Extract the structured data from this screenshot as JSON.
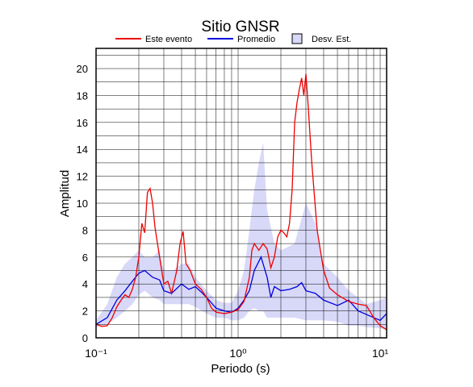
{
  "chart_data": {
    "type": "line",
    "title": "Sitio GNSR",
    "xlabel": "Periodo (s)",
    "ylabel": "Amplitud",
    "xscale": "log",
    "xlim": [
      0.1,
      11.1
    ],
    "ylim": [
      0,
      21.5
    ],
    "xticks": [
      {
        "value": 0.1,
        "label": "10⁻¹"
      },
      {
        "value": 1,
        "label": "10⁰"
      },
      {
        "value": 10,
        "label": "10¹"
      }
    ],
    "yticks": [
      0,
      2,
      4,
      6,
      8,
      10,
      12,
      14,
      16,
      18,
      20
    ],
    "xgrid_minor": [
      0.2,
      0.3,
      0.4,
      0.5,
      0.6,
      0.7,
      0.8,
      0.9,
      2,
      3,
      4,
      5,
      6,
      7,
      8,
      9
    ],
    "ygrid_minor": [
      1,
      3,
      5,
      7,
      9,
      11,
      13,
      15,
      17,
      19,
      21
    ],
    "grid": true,
    "legend": "top",
    "series": [
      {
        "name": "Desv. Est.",
        "kind": "band",
        "color": "#d8d8f8",
        "x": [
          0.1,
          0.12,
          0.14,
          0.16,
          0.18,
          0.2,
          0.22,
          0.25,
          0.28,
          0.3,
          0.35,
          0.4,
          0.45,
          0.5,
          0.6,
          0.7,
          0.8,
          0.9,
          1.0,
          1.1,
          1.2,
          1.3,
          1.4,
          1.5,
          1.6,
          1.8,
          2.0,
          2.5,
          3.0,
          3.5,
          4,
          5,
          6,
          7,
          8,
          10,
          11.1
        ],
        "upper": [
          1.3,
          2.5,
          4.5,
          5.5,
          6.0,
          6.5,
          6.0,
          6.0,
          6.5,
          5.0,
          5.0,
          5.5,
          5.5,
          4.5,
          3.5,
          2.8,
          2.6,
          2.6,
          3.5,
          5.0,
          8.0,
          11.0,
          13.0,
          14.5,
          9.5,
          7.0,
          6.5,
          7.0,
          10.0,
          8.5,
          5.5,
          4.5,
          3.5,
          3.0,
          2.5,
          2.8,
          3.0
        ],
        "lower": [
          0.8,
          1.0,
          1.5,
          2.0,
          2.5,
          3.2,
          3.5,
          3.0,
          2.8,
          2.5,
          2.5,
          2.5,
          2.5,
          2.3,
          1.8,
          1.5,
          1.5,
          1.3,
          1.3,
          1.5,
          2.0,
          2.2,
          2.0,
          2.0,
          1.5,
          1.5,
          1.5,
          1.5,
          1.3,
          1.3,
          1.3,
          1.2,
          0.9,
          0.9,
          0.8,
          0.7,
          0.6
        ]
      },
      {
        "name": "Promedio",
        "kind": "line",
        "color": "#0000dd",
        "x": [
          0.1,
          0.12,
          0.14,
          0.16,
          0.18,
          0.2,
          0.22,
          0.25,
          0.28,
          0.3,
          0.34,
          0.4,
          0.45,
          0.5,
          0.55,
          0.6,
          0.7,
          0.8,
          0.9,
          1.0,
          1.1,
          1.2,
          1.3,
          1.45,
          1.6,
          1.7,
          1.8,
          2.0,
          2.3,
          2.6,
          2.8,
          3.0,
          3.5,
          4.0,
          5.0,
          6.0,
          7.0,
          9.0,
          10,
          11.1
        ],
        "values": [
          1.0,
          1.5,
          2.8,
          3.5,
          4.2,
          4.8,
          5.0,
          4.5,
          4.3,
          3.5,
          3.3,
          4.0,
          3.6,
          3.8,
          3.4,
          3.0,
          2.2,
          2.0,
          1.9,
          2.2,
          2.8,
          3.5,
          5.0,
          6.0,
          4.5,
          3.0,
          3.8,
          3.5,
          3.6,
          3.8,
          4.1,
          3.5,
          3.3,
          2.8,
          2.4,
          2.8,
          2.0,
          1.5,
          1.3,
          1.8
        ]
      },
      {
        "name": "Este evento",
        "kind": "line",
        "color": "#ee0000",
        "x": [
          0.1,
          0.11,
          0.12,
          0.13,
          0.14,
          0.15,
          0.16,
          0.17,
          0.18,
          0.19,
          0.2,
          0.21,
          0.22,
          0.23,
          0.24,
          0.25,
          0.26,
          0.28,
          0.3,
          0.32,
          0.34,
          0.37,
          0.39,
          0.41,
          0.43,
          0.46,
          0.5,
          0.55,
          0.6,
          0.65,
          0.7,
          0.8,
          0.9,
          1.0,
          1.1,
          1.2,
          1.25,
          1.3,
          1.4,
          1.5,
          1.6,
          1.7,
          1.8,
          1.9,
          2.0,
          2.1,
          2.2,
          2.3,
          2.4,
          2.5,
          2.6,
          2.7,
          2.8,
          2.9,
          3.0,
          3.1,
          3.3,
          3.6,
          4.0,
          4.4,
          5.0,
          6.0,
          7.0,
          8.0,
          9.0,
          10.0,
          11.1
        ],
        "values": [
          1.0,
          0.85,
          0.9,
          1.5,
          2.3,
          2.8,
          3.2,
          3.0,
          3.6,
          4.5,
          6.0,
          8.5,
          7.8,
          10.8,
          11.1,
          10.0,
          8.2,
          6.0,
          4.0,
          4.2,
          3.3,
          5.0,
          7.0,
          7.9,
          5.5,
          5.0,
          4.0,
          3.6,
          3.0,
          2.2,
          1.9,
          1.8,
          1.9,
          2.1,
          2.7,
          4.5,
          6.5,
          7.0,
          6.5,
          7.0,
          6.6,
          5.2,
          6.0,
          7.5,
          8.0,
          7.8,
          7.5,
          8.5,
          11.0,
          16.0,
          17.5,
          18.5,
          19.3,
          18.0,
          19.6,
          17.5,
          13.0,
          8.0,
          5.0,
          3.7,
          3.2,
          2.7,
          2.5,
          2.4,
          1.5,
          0.9,
          0.6
        ]
      }
    ]
  }
}
